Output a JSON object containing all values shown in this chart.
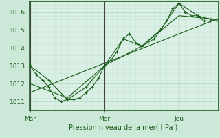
{
  "background_color": "#cce8d8",
  "plot_bg_color": "#daf0e4",
  "grid_color_major": "#b8d8c8",
  "grid_color_minor": "#c8e4d8",
  "line_color": "#1a5c1a",
  "vline_color": "#444444",
  "xlabel": "Pression niveau de la mer( hPa )",
  "ylim": [
    1010.5,
    1016.6
  ],
  "yticks": [
    1011,
    1012,
    1013,
    1014,
    1015,
    1016
  ],
  "xlim": [
    -0.02,
    2.52
  ],
  "day_ticks": [
    0.0,
    1.0,
    2.0
  ],
  "day_labels": [
    "Mar",
    "Mer",
    "Jeu"
  ],
  "series1_x": [
    0.0,
    0.083,
    0.167,
    0.25,
    0.333,
    0.417,
    0.5,
    0.583,
    0.667,
    0.75,
    0.833,
    0.917,
    1.0,
    1.083,
    1.167,
    1.25,
    1.333,
    1.417,
    1.5,
    1.583,
    1.667,
    1.75,
    1.833,
    1.917,
    2.0,
    2.083,
    2.167,
    2.25,
    2.333,
    2.417,
    2.5
  ],
  "series1_y": [
    1013.0,
    1012.5,
    1012.2,
    1011.8,
    1011.2,
    1011.0,
    1011.1,
    1011.1,
    1011.2,
    1011.5,
    1011.8,
    1012.3,
    1013.0,
    1013.3,
    1013.8,
    1014.5,
    1014.8,
    1014.3,
    1014.1,
    1014.3,
    1014.5,
    1015.0,
    1015.5,
    1016.2,
    1016.5,
    1016.0,
    1015.8,
    1015.8,
    1015.5,
    1015.5,
    1015.6
  ],
  "series2_x": [
    0.0,
    0.25,
    0.5,
    0.75,
    1.0,
    1.25,
    1.5,
    1.75,
    2.0,
    2.25,
    2.5
  ],
  "series2_y": [
    1013.0,
    1012.2,
    1011.1,
    1011.8,
    1013.0,
    1014.5,
    1014.1,
    1015.0,
    1016.5,
    1015.8,
    1015.5
  ],
  "series3_x": [
    0.0,
    0.5,
    1.0,
    1.5,
    2.0,
    2.5
  ],
  "series3_y": [
    1012.0,
    1011.2,
    1013.0,
    1014.1,
    1015.8,
    1015.6
  ],
  "trend_x": [
    0.0,
    2.5
  ],
  "trend_y": [
    1011.5,
    1015.6
  ]
}
